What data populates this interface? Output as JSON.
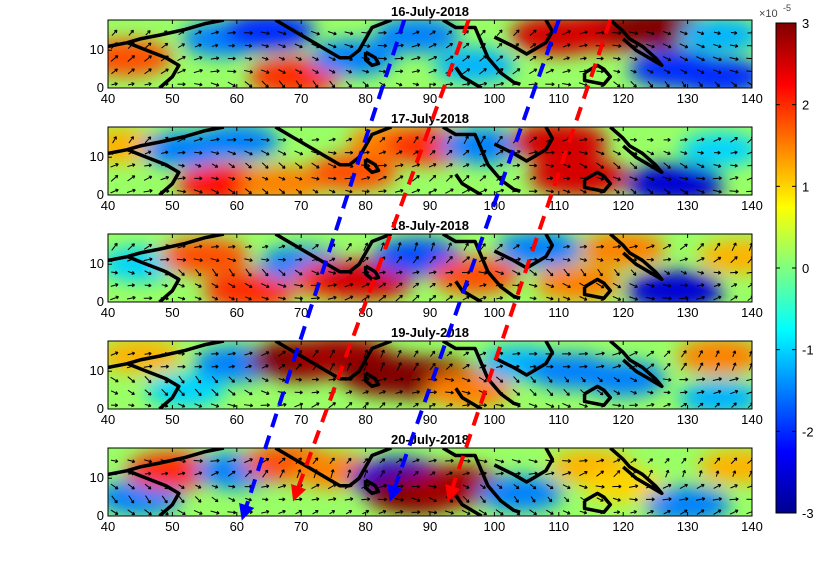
{
  "chart_data": {
    "type": "heatmap",
    "panels": [
      {
        "title": "16-July-2018"
      },
      {
        "title": "17-July-2018"
      },
      {
        "title": "18-July-2018"
      },
      {
        "title": "19-July-2018"
      },
      {
        "title": "20-July-2018"
      }
    ],
    "xlim": [
      40,
      140
    ],
    "ylim": [
      0,
      18
    ],
    "xticks": [
      "40",
      "50",
      "60",
      "70",
      "80",
      "90",
      "100",
      "110",
      "120",
      "130",
      "140"
    ],
    "yticks": [
      "0",
      "10"
    ],
    "colorbar": {
      "range": [
        -3,
        3
      ],
      "ticks": [
        "3",
        "2",
        "1",
        "0",
        "-1",
        "-2",
        "-3"
      ],
      "multiplier_label": "×10",
      "multiplier_exponent": "-5",
      "colormap": "jet"
    },
    "propagation_arrows": [
      {
        "color": "#0000ff",
        "from": {
          "x": 86,
          "y": 18
        },
        "to": {
          "x": 61,
          "y": 0
        }
      },
      {
        "color": "#ff0000",
        "from": {
          "x": 96,
          "y": 18
        },
        "to": {
          "x": 69,
          "y": 5
        }
      },
      {
        "color": "#0000ff",
        "from": {
          "x": 110,
          "y": 18
        },
        "to": {
          "x": 84,
          "y": 5
        }
      },
      {
        "color": "#ff0000",
        "from": {
          "x": 118,
          "y": 18
        },
        "to": {
          "x": 93,
          "y": 5
        }
      }
    ],
    "anomaly_features": [
      [
        {
          "x": 43,
          "y": 8,
          "v": 1.8
        },
        {
          "x": 58,
          "y": 13,
          "v": -1.5
        },
        {
          "x": 65,
          "y": 15,
          "v": -2.0
        },
        {
          "x": 69,
          "y": 3,
          "v": 2.0
        },
        {
          "x": 78,
          "y": 8,
          "v": -1.5
        },
        {
          "x": 88,
          "y": 14,
          "v": -1.5
        },
        {
          "x": 97,
          "y": 6,
          "v": -1.2
        },
        {
          "x": 110,
          "y": 14,
          "v": 2.5
        },
        {
          "x": 117,
          "y": 15,
          "v": 2.5
        },
        {
          "x": 125,
          "y": 16,
          "v": 3.0
        },
        {
          "x": 128,
          "y": 5,
          "v": -2.0
        },
        {
          "x": 135,
          "y": 14,
          "v": -1.2
        },
        {
          "x": 135,
          "y": 3,
          "v": -2.0
        }
      ],
      [
        {
          "x": 42,
          "y": 13,
          "v": 1.2
        },
        {
          "x": 52,
          "y": 12,
          "v": -1.5
        },
        {
          "x": 58,
          "y": 3,
          "v": 2.2
        },
        {
          "x": 60,
          "y": 14,
          "v": -1.5
        },
        {
          "x": 67,
          "y": 3,
          "v": 1.5
        },
        {
          "x": 78,
          "y": 6,
          "v": 1.8
        },
        {
          "x": 84,
          "y": 14,
          "v": 1.5
        },
        {
          "x": 90,
          "y": 13,
          "v": 2.0
        },
        {
          "x": 98,
          "y": 13,
          "v": -1.5
        },
        {
          "x": 110,
          "y": 14,
          "v": 2.5
        },
        {
          "x": 113,
          "y": 5,
          "v": 2.5
        },
        {
          "x": 128,
          "y": 3,
          "v": -2.5
        },
        {
          "x": 135,
          "y": 12,
          "v": -1.0
        }
      ],
      [
        {
          "x": 45,
          "y": 10,
          "v": -1.0
        },
        {
          "x": 55,
          "y": 12,
          "v": 1.8
        },
        {
          "x": 62,
          "y": 3,
          "v": 2.0
        },
        {
          "x": 70,
          "y": 10,
          "v": -1.5
        },
        {
          "x": 76,
          "y": 6,
          "v": 2.0
        },
        {
          "x": 80,
          "y": 6,
          "v": 2.5
        },
        {
          "x": 88,
          "y": 12,
          "v": -1.8
        },
        {
          "x": 97,
          "y": 7,
          "v": 1.8
        },
        {
          "x": 107,
          "y": 14,
          "v": -1.5
        },
        {
          "x": 113,
          "y": 5,
          "v": 1.5
        },
        {
          "x": 120,
          "y": 14,
          "v": 1.5
        },
        {
          "x": 128,
          "y": 3,
          "v": -2.5
        },
        {
          "x": 138,
          "y": 12,
          "v": 1.2
        }
      ],
      [
        {
          "x": 45,
          "y": 14,
          "v": 1.2
        },
        {
          "x": 52,
          "y": 5,
          "v": -1.0
        },
        {
          "x": 60,
          "y": 12,
          "v": -1.5
        },
        {
          "x": 70,
          "y": 13,
          "v": 3.0
        },
        {
          "x": 76,
          "y": 14,
          "v": 2.8
        },
        {
          "x": 84,
          "y": 9,
          "v": 3.0
        },
        {
          "x": 90,
          "y": 8,
          "v": 3.0
        },
        {
          "x": 96,
          "y": 5,
          "v": 1.5
        },
        {
          "x": 104,
          "y": 12,
          "v": -1.2
        },
        {
          "x": 112,
          "y": 10,
          "v": -1.5
        },
        {
          "x": 120,
          "y": 8,
          "v": -1.5
        },
        {
          "x": 135,
          "y": 14,
          "v": 1.5
        },
        {
          "x": 135,
          "y": 3,
          "v": -1.2
        }
      ],
      [
        {
          "x": 45,
          "y": 5,
          "v": -1.5
        },
        {
          "x": 50,
          "y": 12,
          "v": 2.0
        },
        {
          "x": 60,
          "y": 12,
          "v": -1.5
        },
        {
          "x": 68,
          "y": 14,
          "v": 1.8
        },
        {
          "x": 75,
          "y": 12,
          "v": 1.5
        },
        {
          "x": 85,
          "y": 10,
          "v": -2.5
        },
        {
          "x": 88,
          "y": 6,
          "v": 3.0
        },
        {
          "x": 94,
          "y": 8,
          "v": 2.8
        },
        {
          "x": 104,
          "y": 6,
          "v": -1.5
        },
        {
          "x": 115,
          "y": 13,
          "v": 1.2
        },
        {
          "x": 120,
          "y": 8,
          "v": 1.0
        },
        {
          "x": 130,
          "y": 3,
          "v": -1.5
        },
        {
          "x": 138,
          "y": 13,
          "v": 1.2
        }
      ]
    ]
  }
}
